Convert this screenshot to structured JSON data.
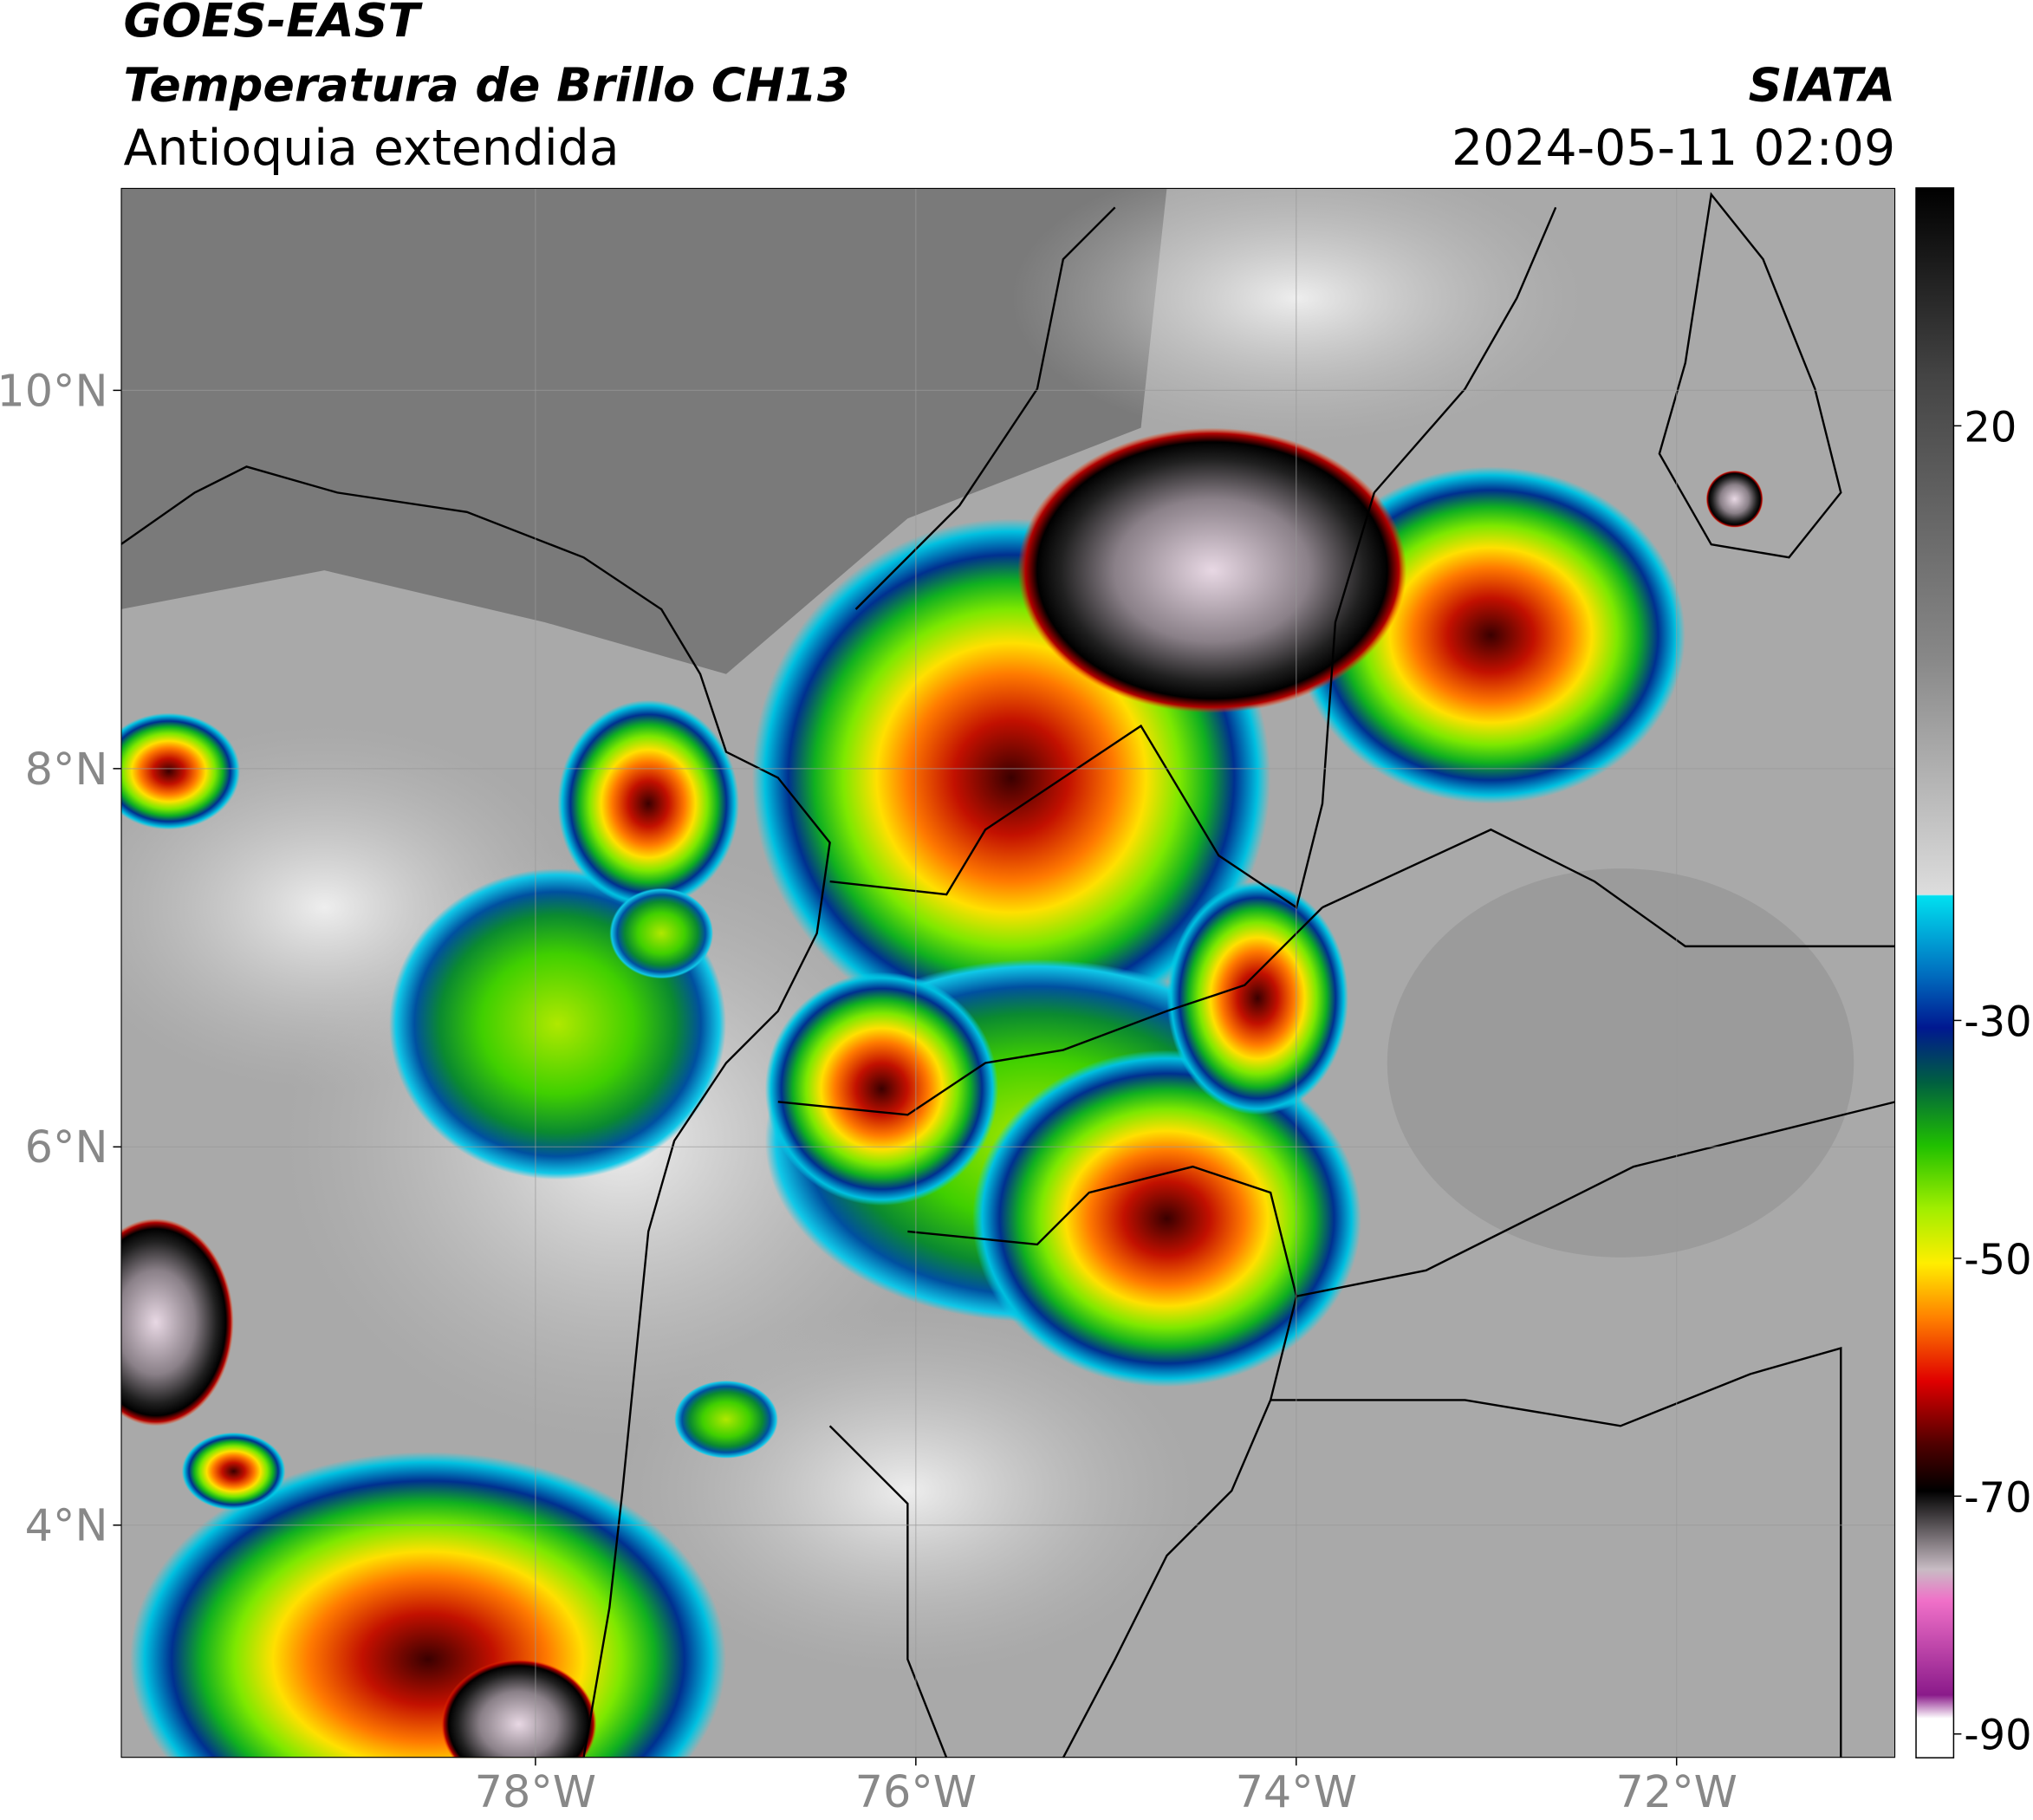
{
  "header": {
    "title": "GOES-EAST",
    "subtitle": "Temperatura de Brillo CH13",
    "region": "Antioquia extendida",
    "source": "SIATA",
    "timestamp": "2024-05-11 02:09"
  },
  "map": {
    "lonlim": [
      -80.18,
      -70.85
    ],
    "latlim": [
      2.77,
      11.07
    ],
    "lonticks": [
      {
        "value": -78,
        "label": "78°W"
      },
      {
        "value": -76,
        "label": "76°W"
      },
      {
        "value": -74,
        "label": "74°W"
      },
      {
        "value": -72,
        "label": "72°W"
      }
    ],
    "latticks": [
      {
        "value": 10,
        "label": "10°N"
      },
      {
        "value": 8,
        "label": "8°N"
      },
      {
        "value": 6,
        "label": "6°N"
      },
      {
        "value": 4,
        "label": "4°N"
      }
    ]
  },
  "colorbar": {
    "lim": [
      -92,
      40
    ],
    "ticks": [
      20,
      -30,
      -50,
      -70,
      -90
    ]
  }
}
